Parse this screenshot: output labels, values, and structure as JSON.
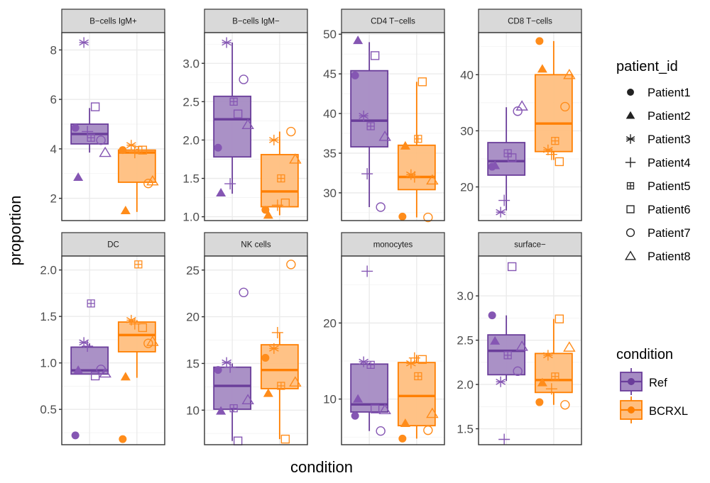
{
  "chart_data": {
    "type": "box",
    "title": "",
    "xlabel": "condition",
    "ylabel": "proportion",
    "facet_by": "cell_type",
    "scales": "free_y",
    "grid": true,
    "conditions": [
      "Ref",
      "BCRXL"
    ],
    "condition_colors": {
      "Ref": "#6a3d9a",
      "BCRXL": "#ff7f00"
    },
    "condition_fill": {
      "Ref": "#a58bc3",
      "BCRXL": "#ffbf80"
    },
    "patients": [
      "Patient1",
      "Patient2",
      "Patient3",
      "Patient4",
      "Patient5",
      "Patient6",
      "Patient7",
      "Patient8"
    ],
    "patient_shapes": {
      "Patient1": "filled-circle",
      "Patient2": "filled-triangle",
      "Patient3": "asterisk",
      "Patient4": "plus",
      "Patient5": "square-plus",
      "Patient6": "open-square",
      "Patient7": "open-circle",
      "Patient8": "open-triangle"
    },
    "legends": [
      {
        "title": "patient_id",
        "type": "shape",
        "position": "right-top",
        "entries": [
          "Patient1",
          "Patient2",
          "Patient3",
          "Patient4",
          "Patient5",
          "Patient6",
          "Patient7",
          "Patient8"
        ]
      },
      {
        "title": "condition",
        "type": "fill",
        "position": "right-bottom",
        "entries": [
          "Ref",
          "BCRXL"
        ]
      }
    ],
    "panels": [
      {
        "name": "B−cells IgM+",
        "ylim": [
          1.1,
          8.7
        ],
        "yticks": [
          2,
          4,
          6,
          8
        ],
        "ytick_labels": [
          "2",
          "4",
          "6",
          "8"
        ],
        "boxes": {
          "Ref": {
            "q1": 4.2,
            "median": 4.6,
            "q3": 5.0,
            "whisker_low": 3.85,
            "whisker_high": 5.65
          },
          "BCRXL": {
            "q1": 2.65,
            "median": 3.85,
            "q3": 3.95,
            "whisker_low": 1.45,
            "whisker_high": 4.0
          }
        },
        "points": {
          "Ref": [
            4.85,
            2.85,
            8.3,
            4.7,
            4.45,
            5.7,
            4.35,
            3.85
          ],
          "BCRXL": [
            3.95,
            1.5,
            4.15,
            3.85,
            3.95,
            3.95,
            2.6,
            2.7
          ]
        }
      },
      {
        "name": "B−cells IgM−",
        "ylim": [
          0.95,
          3.4
        ],
        "yticks": [
          1.0,
          1.5,
          2.0,
          2.5,
          3.0
        ],
        "ytick_labels": [
          "1.0",
          "1.5",
          "2.0",
          "2.5",
          "3.0"
        ],
        "boxes": {
          "Ref": {
            "q1": 1.78,
            "median": 2.27,
            "q3": 2.57,
            "whisker_low": 1.3,
            "whisker_high": 3.27
          },
          "BCRXL": {
            "q1": 1.13,
            "median": 1.33,
            "q3": 1.81,
            "whisker_low": 1.02,
            "whisker_high": 2.11
          }
        },
        "points": {
          "Ref": [
            1.9,
            1.31,
            3.27,
            1.43,
            2.5,
            2.34,
            2.79,
            2.2
          ],
          "BCRXL": [
            1.09,
            1.02,
            2.0,
            1.15,
            1.5,
            1.18,
            2.11,
            1.75
          ]
        }
      },
      {
        "name": "CD4 T−cells",
        "ylim": [
          26.5,
          50.2
        ],
        "yticks": [
          30,
          35,
          40,
          45,
          50
        ],
        "ytick_labels": [
          "30",
          "35",
          "40",
          "45",
          "50"
        ],
        "boxes": {
          "Ref": {
            "q1": 35.8,
            "median": 39.1,
            "q3": 45.4,
            "whisker_low": 28.2,
            "whisker_high": 49.0
          },
          "BCRXL": {
            "q1": 30.4,
            "median": 32.0,
            "q3": 36.0,
            "whisker_low": 26.9,
            "whisker_high": 44.0
          }
        },
        "points": {
          "Ref": [
            44.8,
            49.2,
            39.7,
            32.4,
            38.4,
            47.3,
            28.2,
            37.1
          ],
          "BCRXL": [
            27.0,
            35.9,
            32.3,
            32.0,
            36.8,
            44.0,
            26.9,
            31.6
          ]
        }
      },
      {
        "name": "CD8 T−cells",
        "ylim": [
          14.0,
          47.5
        ],
        "yticks": [
          20,
          30,
          40
        ],
        "ytick_labels": [
          "20",
          "30",
          "40"
        ],
        "boxes": {
          "Ref": {
            "q1": 22.1,
            "median": 24.6,
            "q3": 27.9,
            "whisker_low": 15.8,
            "whisker_high": 34.2
          },
          "BCRXL": {
            "q1": 26.3,
            "median": 31.3,
            "q3": 40.0,
            "whisker_low": 24.8,
            "whisker_high": 46.0
          }
        },
        "points": {
          "Ref": [
            23.6,
            23.8,
            15.5,
            17.6,
            26.0,
            25.2,
            33.5,
            34.4
          ],
          "BCRXL": [
            46.0,
            41.0,
            26.6,
            25.8,
            28.2,
            24.5,
            34.3,
            40.0
          ]
        }
      },
      {
        "name": "DC",
        "ylim": [
          0.12,
          2.15
        ],
        "yticks": [
          0.5,
          1.0,
          1.5,
          2.0
        ],
        "ytick_labels": [
          "0.5",
          "1.0",
          "1.5",
          "2.0"
        ],
        "boxes": {
          "Ref": {
            "q1": 0.88,
            "median": 0.92,
            "q3": 1.17,
            "whisker_low": 0.88,
            "whisker_high": 1.21
          },
          "BCRXL": {
            "q1": 1.12,
            "median": 1.3,
            "q3": 1.44,
            "whisker_low": 0.84,
            "whisker_high": 1.46
          }
        },
        "points": {
          "Ref": [
            0.22,
            0.92,
            1.22,
            1.18,
            1.64,
            0.86,
            0.93,
            0.89
          ],
          "BCRXL": [
            0.18,
            0.85,
            1.46,
            1.42,
            2.06,
            1.38,
            1.21,
            1.23
          ]
        }
      },
      {
        "name": "NK cells",
        "ylim": [
          6.3,
          26.5
        ],
        "yticks": [
          10,
          15,
          20,
          25
        ],
        "ytick_labels": [
          "10",
          "15",
          "20",
          "25"
        ],
        "boxes": {
          "Ref": {
            "q1": 10.1,
            "median": 12.6,
            "q3": 14.6,
            "whisker_low": 6.7,
            "whisker_high": 15.0
          },
          "BCRXL": {
            "q1": 12.3,
            "median": 14.3,
            "q3": 17.0,
            "whisker_low": 6.9,
            "whisker_high": 18.3
          }
        },
        "points": {
          "Ref": [
            14.3,
            9.9,
            15.1,
            14.6,
            10.2,
            6.7,
            22.6,
            11.1
          ],
          "BCRXL": [
            15.6,
            11.8,
            16.6,
            18.3,
            12.6,
            6.9,
            25.6,
            13.0
          ]
        }
      },
      {
        "name": "monocytes",
        "ylim": [
          4.0,
          28.8
        ],
        "yticks": [
          10,
          20
        ],
        "ytick_labels": [
          "10",
          "20"
        ],
        "boxes": {
          "Ref": {
            "q1": 8.3,
            "median": 9.3,
            "q3": 14.6,
            "whisker_low": 5.8,
            "whisker_high": 14.8
          },
          "BCRXL": {
            "q1": 6.5,
            "median": 10.4,
            "q3": 14.8,
            "whisker_low": 4.8,
            "whisker_high": 15.8
          }
        },
        "points": {
          "Ref": [
            7.8,
            10.0,
            14.9,
            26.8,
            14.5,
            8.7,
            5.8,
            8.6
          ],
          "BCRXL": [
            4.8,
            6.8,
            14.7,
            15.4,
            13.0,
            15.2,
            5.9,
            8.1
          ]
        }
      },
      {
        "name": "surface−",
        "ylim": [
          1.32,
          3.45
        ],
        "yticks": [
          1.5,
          2.0,
          2.5,
          3.0
        ],
        "ytick_labels": [
          "1.5",
          "2.0",
          "2.5",
          "3.0"
        ],
        "boxes": {
          "Ref": {
            "q1": 2.11,
            "median": 2.38,
            "q3": 2.56,
            "whisker_low": 2.04,
            "whisker_high": 2.78
          },
          "BCRXL": {
            "q1": 1.91,
            "median": 2.05,
            "q3": 2.35,
            "whisker_low": 1.77,
            "whisker_high": 2.74
          }
        },
        "points": {
          "Ref": [
            2.78,
            2.49,
            2.03,
            1.38,
            2.33,
            3.33,
            2.15,
            2.43
          ],
          "BCRXL": [
            1.8,
            2.02,
            2.33,
            1.95,
            2.09,
            2.74,
            1.77,
            2.42
          ]
        }
      }
    ]
  }
}
